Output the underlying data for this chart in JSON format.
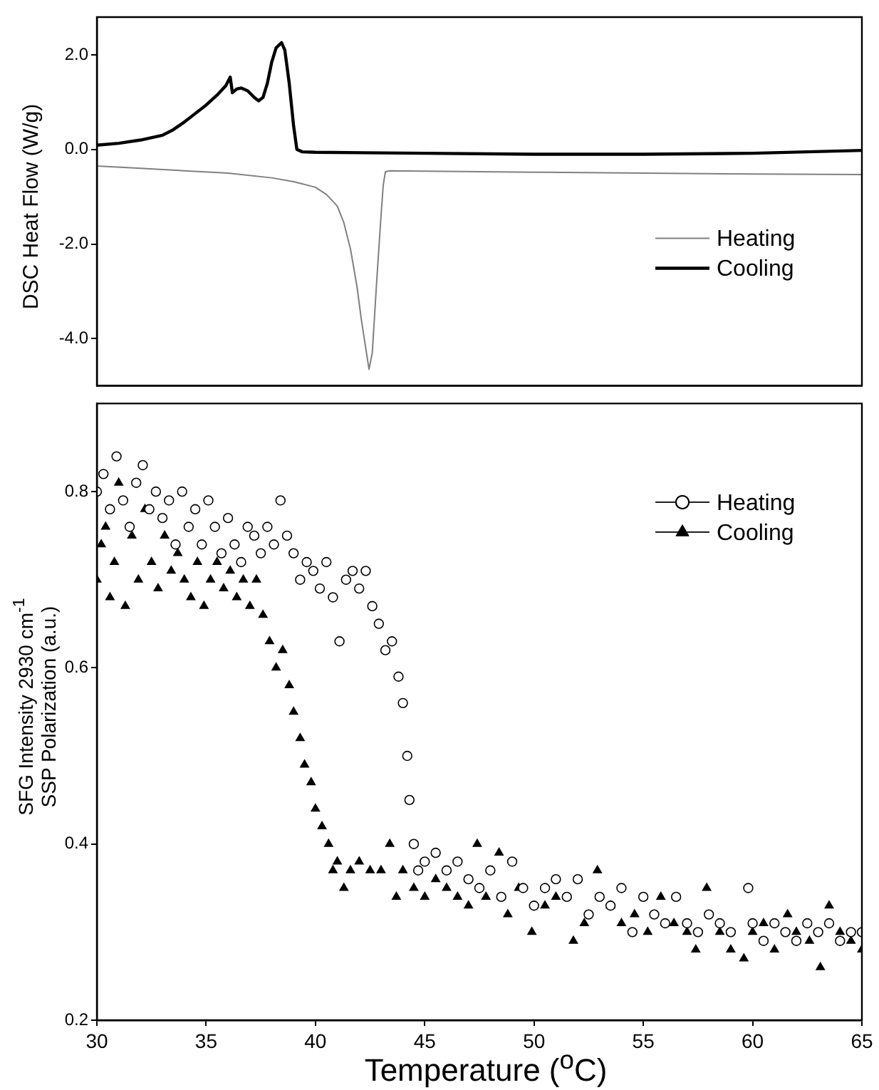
{
  "chart_data": [
    {
      "type": "line",
      "ylabel": "DSC Heat Flow (W/g)",
      "xlim": [
        30,
        65
      ],
      "ylim": [
        -5,
        2.8
      ],
      "yticks": [
        {
          "value": -4,
          "label": "-4.0"
        },
        {
          "value": -2,
          "label": "-2.0"
        },
        {
          "value": 0,
          "label": "0.0"
        },
        {
          "value": 2,
          "label": "2.0"
        }
      ],
      "tick_labels": "y",
      "grid": false,
      "legend": "right",
      "series": [
        {
          "name": "Heating",
          "color": "#808080",
          "x": [
            30,
            32,
            34,
            36,
            38,
            39,
            40,
            40.5,
            41,
            41.3,
            41.6,
            41.9,
            42.1,
            42.3,
            42.45,
            42.6,
            42.8,
            43,
            43.1,
            43.2,
            43.4,
            45,
            50,
            55,
            60,
            65
          ],
          "values": [
            -0.35,
            -0.4,
            -0.45,
            -0.5,
            -0.6,
            -0.68,
            -0.8,
            -0.95,
            -1.2,
            -1.55,
            -2.1,
            -2.9,
            -3.6,
            -4.2,
            -4.65,
            -4.3,
            -2.8,
            -1.4,
            -0.76,
            -0.47,
            -0.45,
            -0.46,
            -0.48,
            -0.5,
            -0.52,
            -0.53
          ]
        },
        {
          "name": "Cooling",
          "color": "#000000",
          "x": [
            30,
            31,
            32,
            33,
            33.5,
            34,
            34.5,
            35,
            35.5,
            35.9,
            36.1,
            36.2,
            36.4,
            36.6,
            36.9,
            37.2,
            37.4,
            37.6,
            37.8,
            38,
            38.2,
            38.45,
            38.6,
            38.8,
            39,
            39.15,
            39.4,
            40,
            45,
            50,
            55,
            60,
            65
          ],
          "values": [
            0.09,
            0.13,
            0.2,
            0.3,
            0.42,
            0.58,
            0.76,
            0.94,
            1.15,
            1.35,
            1.53,
            1.2,
            1.28,
            1.3,
            1.24,
            1.1,
            1.03,
            1.1,
            1.4,
            1.85,
            2.15,
            2.26,
            2.1,
            1.4,
            0.5,
            0,
            -0.05,
            -0.06,
            -0.08,
            -0.1,
            -0.1,
            -0.08,
            -0.02
          ]
        }
      ]
    },
    {
      "type": "scatter",
      "xlabel": "Temperature ($^{o}$C)",
      "ylabel": "SFG Intensity 2930 cm$^{-1}$\nSSP Polarization (a.u.)",
      "xlim": [
        30,
        65
      ],
      "xticks": [
        30,
        35,
        40,
        45,
        50,
        55,
        60,
        65
      ],
      "ylim": [
        0.2,
        0.9
      ],
      "yticks": [
        0.2,
        0.4,
        0.6,
        0.8
      ],
      "grid": false,
      "legend": "top right",
      "series": [
        {
          "name": "Heating",
          "color": "#000000",
          "marker": "circle",
          "x": [
            30,
            30.3,
            30.6,
            30.9,
            31.2,
            31.5,
            31.8,
            32.1,
            32.4,
            32.7,
            33,
            33.3,
            33.6,
            33.9,
            34.2,
            34.5,
            34.8,
            35.1,
            35.4,
            35.7,
            36,
            36.3,
            36.6,
            36.9,
            37.2,
            37.5,
            37.8,
            38.1,
            38.4,
            38.7,
            39,
            39.3,
            39.6,
            39.9,
            40.2,
            40.5,
            40.8,
            41.1,
            41.4,
            41.7,
            42,
            42.3,
            42.6,
            42.9,
            43.2,
            43.5,
            43.8,
            44,
            44.2,
            44.3,
            44.5,
            44.7,
            45,
            45.5,
            46,
            46.5,
            47,
            47.5,
            48,
            48.5,
            49,
            49.5,
            50,
            50.5,
            51,
            51.5,
            52,
            52.5,
            53,
            53.5,
            54,
            54.5,
            55,
            55.5,
            56,
            56.5,
            57,
            57.5,
            58,
            58.5,
            59,
            59.8,
            60,
            60.5,
            61,
            61.5,
            62,
            62.5,
            63,
            63.5,
            64,
            64.5,
            65
          ],
          "values": [
            0.8,
            0.82,
            0.78,
            0.84,
            0.79,
            0.76,
            0.81,
            0.83,
            0.78,
            0.8,
            0.77,
            0.79,
            0.74,
            0.8,
            0.76,
            0.78,
            0.74,
            0.79,
            0.76,
            0.73,
            0.77,
            0.74,
            0.72,
            0.76,
            0.75,
            0.73,
            0.76,
            0.74,
            0.79,
            0.75,
            0.73,
            0.7,
            0.72,
            0.71,
            0.69,
            0.72,
            0.68,
            0.63,
            0.7,
            0.71,
            0.69,
            0.71,
            0.67,
            0.65,
            0.62,
            0.63,
            0.59,
            0.56,
            0.5,
            0.45,
            0.4,
            0.37,
            0.38,
            0.39,
            0.37,
            0.38,
            0.36,
            0.35,
            0.37,
            0.34,
            0.38,
            0.35,
            0.33,
            0.35,
            0.36,
            0.34,
            0.36,
            0.32,
            0.34,
            0.33,
            0.35,
            0.3,
            0.34,
            0.32,
            0.31,
            0.34,
            0.31,
            0.3,
            0.32,
            0.31,
            0.3,
            0.35,
            0.31,
            0.29,
            0.31,
            0.3,
            0.29,
            0.31,
            0.3,
            0.31,
            0.29,
            0.3,
            0.3
          ]
        },
        {
          "name": "Cooling",
          "color": "#000000",
          "marker": "triangle",
          "x": [
            30,
            30.2,
            30.4,
            30.6,
            30.8,
            31,
            31.3,
            31.6,
            31.9,
            32.2,
            32.5,
            32.8,
            33.1,
            33.4,
            33.7,
            34,
            34.3,
            34.6,
            34.9,
            35.2,
            35.5,
            35.8,
            36.1,
            36.4,
            36.7,
            37,
            37.3,
            37.6,
            37.9,
            38.2,
            38.5,
            38.8,
            39,
            39.3,
            39.5,
            39.8,
            40,
            40.3,
            40.6,
            40.8,
            41,
            41.3,
            41.6,
            42,
            42.5,
            43,
            43.4,
            43.7,
            44,
            44.5,
            45,
            45.5,
            46,
            46.5,
            47,
            47.4,
            47.8,
            48.4,
            48.8,
            49.3,
            49.9,
            50.5,
            51,
            51.8,
            52.3,
            52.9,
            53.5,
            54,
            54.6,
            55.2,
            55.8,
            56.4,
            57,
            57.4,
            57.9,
            58.5,
            59,
            59.6,
            60,
            60.5,
            61,
            61.6,
            62,
            62.6,
            63.1,
            63.5,
            64,
            64.5,
            65
          ],
          "values": [
            0.7,
            0.74,
            0.76,
            0.68,
            0.72,
            0.81,
            0.67,
            0.75,
            0.7,
            0.78,
            0.72,
            0.69,
            0.75,
            0.71,
            0.73,
            0.7,
            0.68,
            0.72,
            0.67,
            0.7,
            0.72,
            0.69,
            0.71,
            0.68,
            0.7,
            0.67,
            0.7,
            0.66,
            0.63,
            0.6,
            0.62,
            0.58,
            0.55,
            0.52,
            0.49,
            0.47,
            0.44,
            0.42,
            0.4,
            0.37,
            0.38,
            0.35,
            0.37,
            0.38,
            0.37,
            0.37,
            0.4,
            0.34,
            0.37,
            0.35,
            0.34,
            0.36,
            0.35,
            0.34,
            0.33,
            0.4,
            0.34,
            0.39,
            0.32,
            0.35,
            0.3,
            0.33,
            0.34,
            0.29,
            0.31,
            0.37,
            0.33,
            0.31,
            0.32,
            0.3,
            0.34,
            0.31,
            0.3,
            0.28,
            0.35,
            0.3,
            0.28,
            0.27,
            0.3,
            0.31,
            0.28,
            0.32,
            0.3,
            0.29,
            0.26,
            0.33,
            0.3,
            0.29,
            0.28
          ]
        }
      ]
    }
  ]
}
